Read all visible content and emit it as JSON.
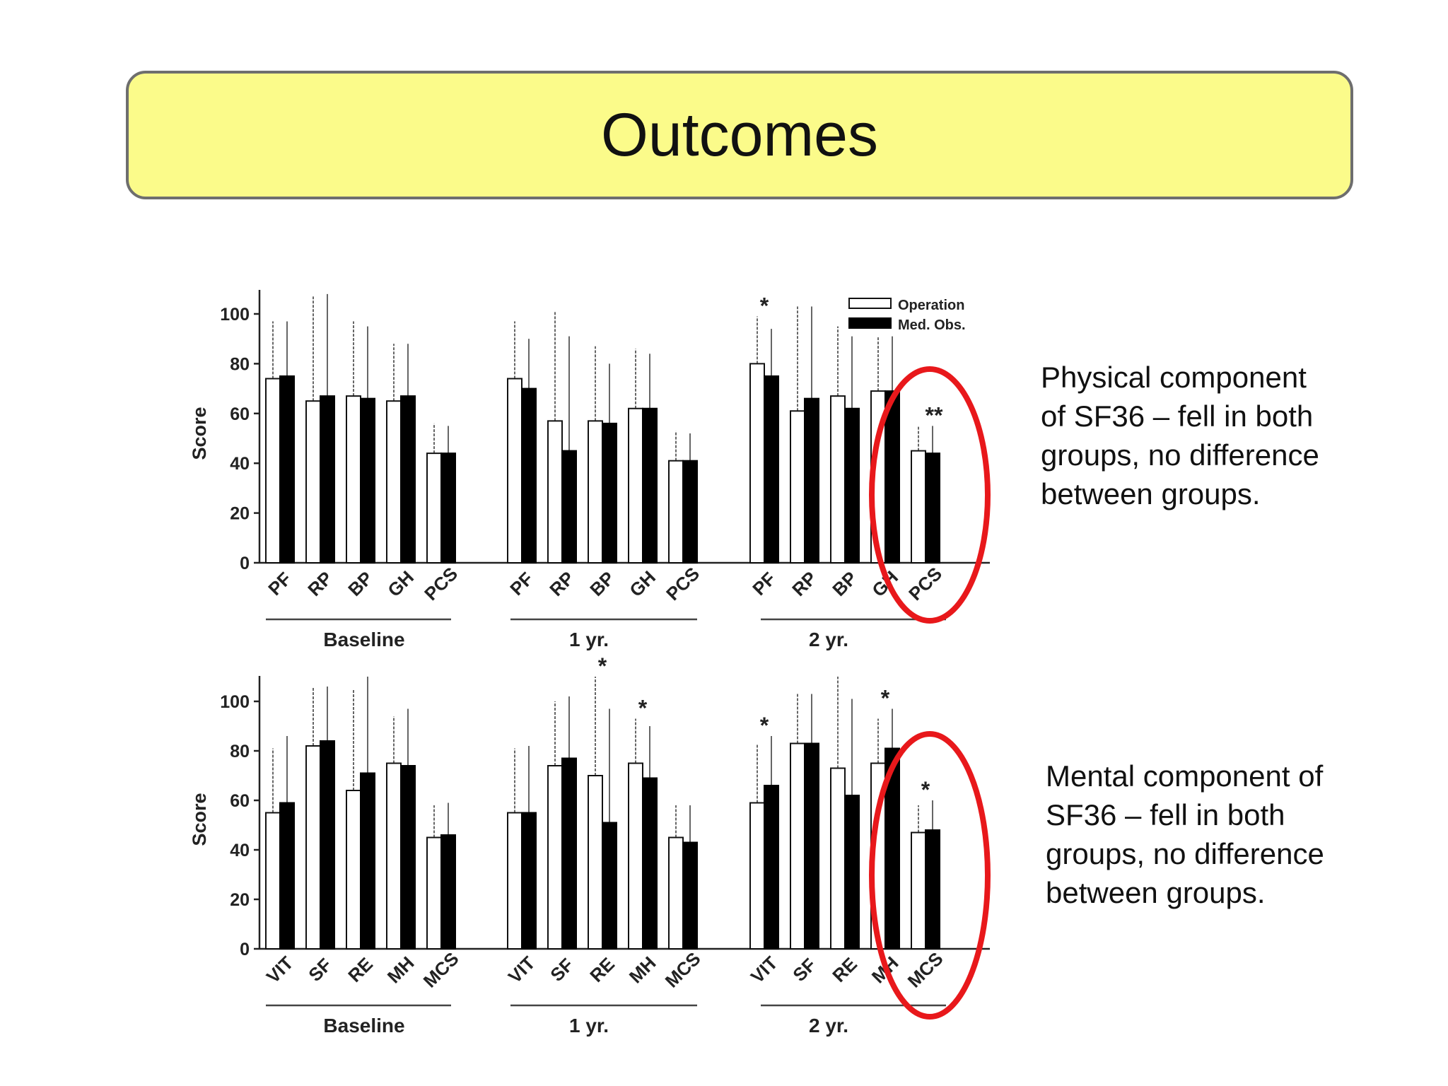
{
  "slide": {
    "title": "Outcomes",
    "note_physical": [
      "Physical component",
      "of SF36 – fell in both",
      "groups, no difference",
      "between groups."
    ],
    "note_mental": [
      "Mental component of",
      "SF36 – fell in both",
      "groups, no difference",
      "between groups."
    ],
    "highlight_color": "#e8181b"
  },
  "chart_data": [
    {
      "type": "bar",
      "panel": "physical",
      "ylabel": "Score",
      "yticks": [
        0,
        20,
        40,
        60,
        80,
        100
      ],
      "ylim": [
        0,
        110
      ],
      "legend": [
        "Operation",
        "Med. Obs."
      ],
      "legend_position": "top-right",
      "groups": [
        {
          "label": "Baseline",
          "categories": [
            "PF",
            "RP",
            "BP",
            "GH",
            "PCS"
          ],
          "operation": [
            74,
            65,
            67,
            65,
            44
          ],
          "med_obs": [
            75,
            67,
            66,
            67,
            44
          ],
          "operation_err": [
            97,
            107,
            97,
            88,
            56
          ],
          "med_obs_err": [
            97,
            108,
            95,
            88,
            55
          ],
          "significance": [
            "",
            "",
            "",
            "",
            ""
          ]
        },
        {
          "label": "1 yr.",
          "categories": [
            "PF",
            "RP",
            "BP",
            "GH",
            "PCS"
          ],
          "operation": [
            74,
            57,
            57,
            62,
            41
          ],
          "med_obs": [
            70,
            45,
            56,
            62,
            41
          ],
          "operation_err": [
            97,
            101,
            87,
            86,
            53
          ],
          "med_obs_err": [
            90,
            91,
            80,
            84,
            52
          ],
          "significance": [
            "",
            "",
            "",
            "",
            ""
          ]
        },
        {
          "label": "2 yr.",
          "categories": [
            "PF",
            "RP",
            "BP",
            "GH",
            "PCS"
          ],
          "operation": [
            80,
            61,
            67,
            69,
            45
          ],
          "med_obs": [
            75,
            66,
            62,
            69,
            44
          ],
          "operation_err": [
            99,
            103,
            95,
            91,
            55
          ],
          "med_obs_err": [
            94,
            103,
            91,
            91,
            55
          ],
          "significance": [
            "*",
            "",
            "",
            "",
            "**"
          ]
        }
      ]
    },
    {
      "type": "bar",
      "panel": "mental",
      "ylabel": "Score",
      "yticks": [
        0,
        20,
        40,
        60,
        80,
        100
      ],
      "ylim": [
        0,
        110
      ],
      "groups": [
        {
          "label": "Baseline",
          "categories": [
            "VIT",
            "SF",
            "RE",
            "MH",
            "MCS"
          ],
          "operation": [
            55,
            82,
            64,
            75,
            45
          ],
          "med_obs": [
            59,
            84,
            71,
            74,
            46
          ],
          "operation_err": [
            81,
            106,
            105,
            94,
            58
          ],
          "med_obs_err": [
            86,
            106,
            110,
            97,
            59
          ],
          "significance": [
            "",
            "",
            "",
            "",
            ""
          ]
        },
        {
          "label": "1 yr.",
          "categories": [
            "VIT",
            "SF",
            "RE",
            "MH",
            "MCS"
          ],
          "operation": [
            55,
            74,
            70,
            75,
            45
          ],
          "med_obs": [
            55,
            77,
            51,
            69,
            43
          ],
          "operation_err": [
            81,
            100,
            110,
            93,
            58
          ],
          "med_obs_err": [
            82,
            102,
            97,
            90,
            58
          ],
          "significance": [
            "",
            "",
            "*",
            "*",
            ""
          ]
        },
        {
          "label": "2 yr.",
          "categories": [
            "VIT",
            "SF",
            "RE",
            "MH",
            "MCS"
          ],
          "operation": [
            59,
            83,
            73,
            75,
            47
          ],
          "med_obs": [
            66,
            83,
            62,
            81,
            48
          ],
          "operation_err": [
            83,
            103,
            110,
            93,
            58
          ],
          "med_obs_err": [
            86,
            103,
            101,
            97,
            60
          ],
          "significance": [
            "*",
            "",
            "",
            "*",
            "*"
          ]
        }
      ]
    }
  ]
}
